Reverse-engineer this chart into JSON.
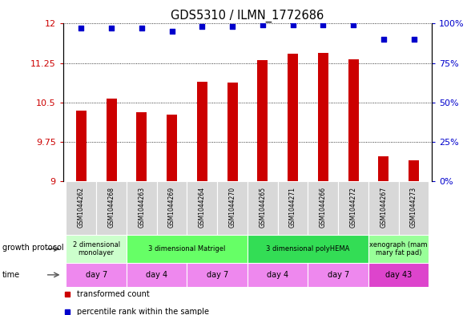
{
  "title": "GDS5310 / ILMN_1772686",
  "samples": [
    "GSM1044262",
    "GSM1044268",
    "GSM1044263",
    "GSM1044269",
    "GSM1044264",
    "GSM1044270",
    "GSM1044265",
    "GSM1044271",
    "GSM1044266",
    "GSM1044272",
    "GSM1044267",
    "GSM1044273"
  ],
  "bar_values": [
    10.35,
    10.57,
    10.32,
    10.27,
    10.9,
    10.87,
    11.3,
    11.43,
    11.44,
    11.32,
    9.47,
    9.4
  ],
  "dot_values": [
    97,
    97,
    97,
    95,
    98,
    98,
    99,
    99,
    99,
    99,
    90,
    90
  ],
  "bar_color": "#cc0000",
  "dot_color": "#0000cc",
  "ylim_left": [
    9,
    12
  ],
  "ylim_right": [
    0,
    100
  ],
  "yticks_left": [
    9,
    9.75,
    10.5,
    11.25,
    12
  ],
  "yticks_right": [
    0,
    25,
    50,
    75,
    100
  ],
  "growth_protocol_groups": [
    {
      "label": "2 dimensional\nmonolayer",
      "start": 0,
      "end": 2,
      "color": "#ccffcc"
    },
    {
      "label": "3 dimensional Matrigel",
      "start": 2,
      "end": 6,
      "color": "#66ff66"
    },
    {
      "label": "3 dimensional polyHEMA",
      "start": 6,
      "end": 10,
      "color": "#33dd55"
    },
    {
      "label": "xenograph (mam\nmary fat pad)",
      "start": 10,
      "end": 12,
      "color": "#99ff99"
    }
  ],
  "time_groups": [
    {
      "label": "day 7",
      "start": 0,
      "end": 2,
      "color": "#ee88ee"
    },
    {
      "label": "day 4",
      "start": 2,
      "end": 4,
      "color": "#ee88ee"
    },
    {
      "label": "day 7",
      "start": 4,
      "end": 6,
      "color": "#ee88ee"
    },
    {
      "label": "day 4",
      "start": 6,
      "end": 8,
      "color": "#ee88ee"
    },
    {
      "label": "day 7",
      "start": 8,
      "end": 10,
      "color": "#ee88ee"
    },
    {
      "label": "day 43",
      "start": 10,
      "end": 12,
      "color": "#dd44cc"
    }
  ],
  "legend_items": [
    {
      "label": "transformed count",
      "color": "#cc0000"
    },
    {
      "label": "percentile rank within the sample",
      "color": "#0000cc"
    }
  ],
  "bar_width": 0.35,
  "bg_color": "#ffffff"
}
